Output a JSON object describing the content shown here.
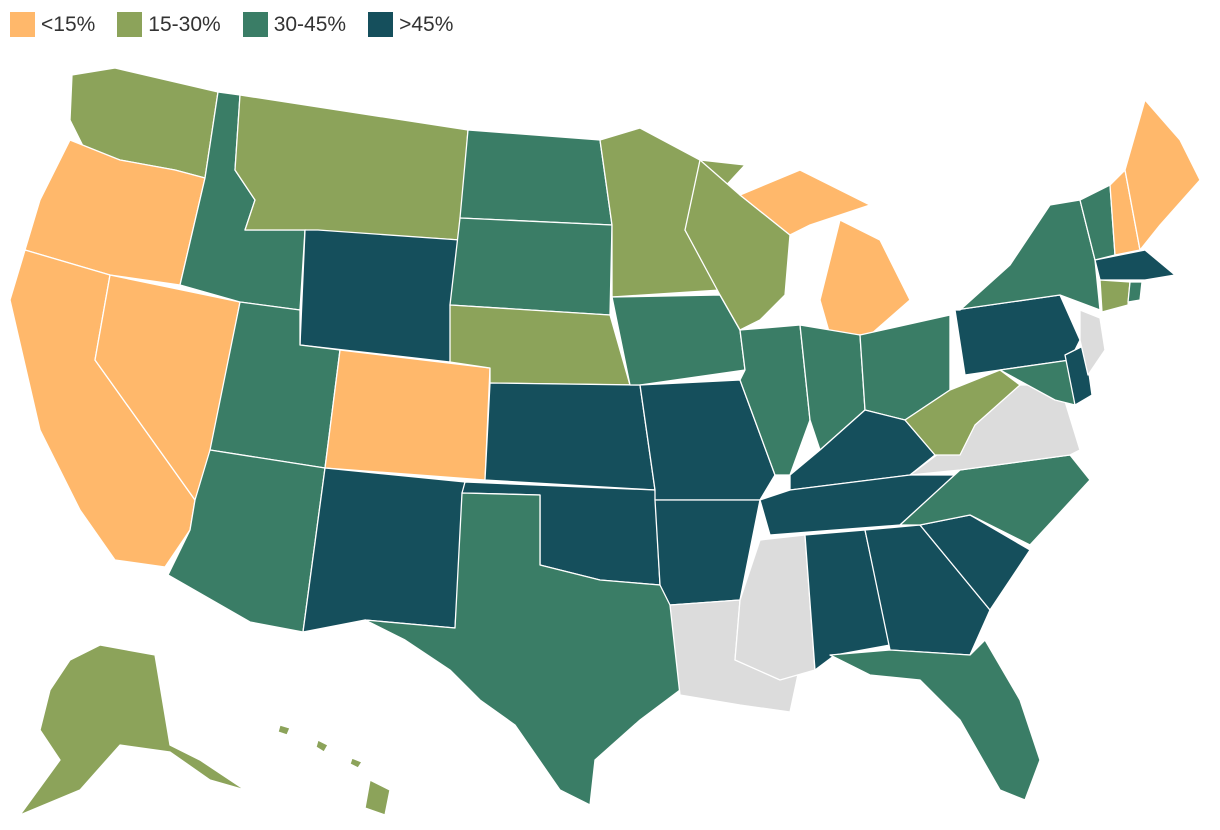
{
  "legend": [
    {
      "label": "<15%",
      "color": "#FFB86B"
    },
    {
      "label": "15-30%",
      "color": "#8CA35A"
    },
    {
      "label": "30-45%",
      "color": "#3A7D66"
    },
    {
      "label": ">45%",
      "color": "#154F5C"
    }
  ],
  "no_data_color": "#DCDCDC",
  "states": {
    "WA": "15-30%",
    "OR": "<15%",
    "CA": "<15%",
    "NV": "<15%",
    "ID": "30-45%",
    "MT": "15-30%",
    "WY": ">45%",
    "UT": "30-45%",
    "CO": "<15%",
    "AZ": "30-45%",
    "NM": ">45%",
    "ND": "30-45%",
    "SD": "30-45%",
    "NE": "15-30%",
    "KS": ">45%",
    "OK": ">45%",
    "TX": "30-45%",
    "MN": "15-30%",
    "IA": "30-45%",
    "MO": ">45%",
    "AR": ">45%",
    "LA": "no data",
    "WI": "15-30%",
    "IL": "30-45%",
    "MI": "<15%",
    "IN": "30-45%",
    "OH": "30-45%",
    "KY": ">45%",
    "TN": ">45%",
    "MS": "no data",
    "AL": ">45%",
    "GA": ">45%",
    "FL": "30-45%",
    "SC": ">45%",
    "NC": "30-45%",
    "VA": "no data",
    "WV": "15-30%",
    "MD": "30-45%",
    "DE": ">45%",
    "PA": ">45%",
    "NJ": "no data",
    "NY": "30-45%",
    "VT": "30-45%",
    "NH": "<15%",
    "ME": "<15%",
    "MA": ">45%",
    "CT": "15-30%",
    "RI": "30-45%",
    "AK": "15-30%",
    "HI": "15-30%"
  }
}
